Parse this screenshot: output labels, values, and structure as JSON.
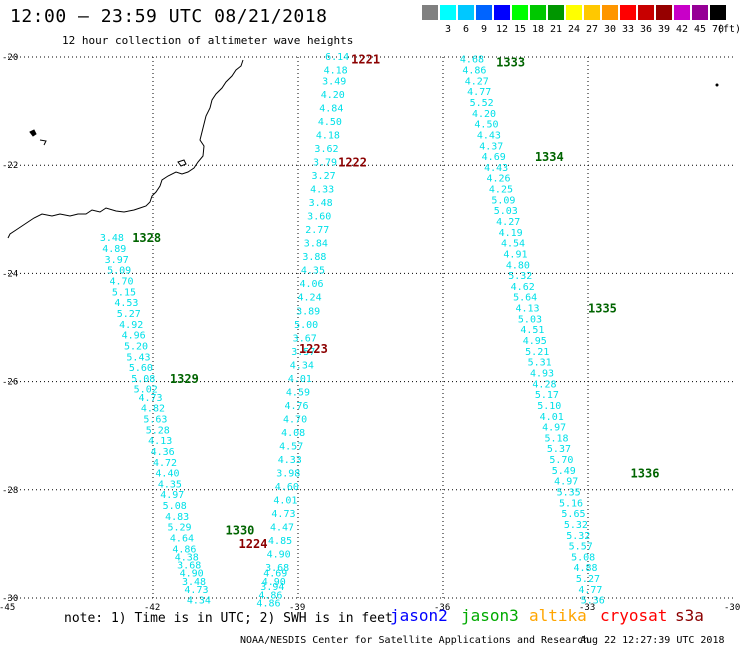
{
  "header": {
    "title": "12:00 – 23:59 UTC 08/21/2018",
    "subtitle": "12 hour collection of altimeter wave heights"
  },
  "legend": {
    "unit_label": "(ft)",
    "items": [
      {
        "label": "",
        "color": "#808080"
      },
      {
        "label": "3",
        "color": "#00ffff"
      },
      {
        "label": "6",
        "color": "#00c8ff"
      },
      {
        "label": "9",
        "color": "#0064ff"
      },
      {
        "label": "12",
        "color": "#0000ff"
      },
      {
        "label": "15",
        "color": "#00ff00"
      },
      {
        "label": "18",
        "color": "#00c800"
      },
      {
        "label": "21",
        "color": "#009600"
      },
      {
        "label": "24",
        "color": "#ffff00"
      },
      {
        "label": "27",
        "color": "#ffc800"
      },
      {
        "label": "30",
        "color": "#ff9600"
      },
      {
        "label": "33",
        "color": "#ff0000"
      },
      {
        "label": "36",
        "color": "#c80000"
      },
      {
        "label": "39",
        "color": "#960000"
      },
      {
        "label": "42",
        "color": "#c800c8"
      },
      {
        "label": "45",
        "color": "#960096"
      },
      {
        "label": "70",
        "color": "#000000"
      }
    ]
  },
  "map": {
    "lat_labels": [
      "-20",
      "-22",
      "-24",
      "-26",
      "-28",
      "-30"
    ],
    "lon_labels": [
      "-45",
      "-42",
      "-39",
      "-36",
      "-33",
      "-30"
    ],
    "tracks": [
      {
        "name": "1221-1224 track",
        "points": [
          [
            "6.14",
            -38.44,
            -20.0
          ],
          [
            "4.18",
            -38.47,
            -20.25
          ],
          [
            "3.49",
            -38.5,
            -20.45
          ],
          [
            "4.20",
            -38.53,
            -20.7
          ],
          [
            "4.84",
            -38.56,
            -20.95
          ],
          [
            "4.50",
            -38.59,
            -21.2
          ],
          [
            "4.18",
            -38.63,
            -21.45
          ],
          [
            "3.62",
            -38.66,
            -21.7
          ],
          [
            "3.79",
            -38.69,
            -21.95
          ],
          [
            "3.27",
            -38.72,
            -22.2
          ],
          [
            "4.33",
            -38.75,
            -22.45
          ],
          [
            "3.48",
            -38.78,
            -22.7
          ],
          [
            "3.60",
            -38.81,
            -22.95
          ],
          [
            "2.77",
            -38.85,
            -23.2
          ],
          [
            "3.84",
            -38.88,
            -23.45
          ],
          [
            "3.88",
            -38.91,
            -23.7
          ],
          [
            "4.35",
            -38.94,
            -23.95
          ],
          [
            "4.06",
            -38.97,
            -24.2
          ],
          [
            "4.24",
            -39.01,
            -24.45
          ],
          [
            "3.89",
            -39.04,
            -24.7
          ],
          [
            "5.00",
            -39.08,
            -24.95
          ],
          [
            "3.67",
            -39.11,
            -25.2
          ],
          [
            "3.57",
            -39.14,
            -25.45
          ],
          [
            "4.34",
            -39.17,
            -25.7
          ],
          [
            "4.01",
            -39.21,
            -25.95
          ],
          [
            "4.59",
            -39.25,
            -26.2
          ],
          [
            "4.76",
            -39.28,
            -26.45
          ],
          [
            "4.70",
            -39.31,
            -26.7
          ],
          [
            "4.08",
            -39.35,
            -26.95
          ],
          [
            "4.57",
            -39.39,
            -27.2
          ],
          [
            "4.33",
            -39.42,
            -27.45
          ],
          [
            "3.98",
            -39.45,
            -27.7
          ],
          [
            "4.60",
            -39.48,
            -27.95
          ],
          [
            "4.01",
            -39.51,
            -28.2
          ],
          [
            "4.73",
            -39.55,
            -28.45
          ],
          [
            "4.47",
            -39.58,
            -28.7
          ],
          [
            "4.85",
            -39.62,
            -28.95
          ],
          [
            "4.90",
            -39.65,
            -29.2
          ],
          [
            "3.68",
            -39.68,
            -29.45
          ],
          [
            "4.69",
            -39.72,
            -29.55
          ],
          [
            "4.90",
            -39.75,
            -29.7
          ],
          [
            "3.94",
            -39.78,
            -29.8
          ],
          [
            "4.86",
            -39.82,
            -29.95
          ],
          [
            "4.86",
            -39.86,
            -30.1
          ]
        ]
      },
      {
        "name": "1328-1330 track",
        "points": [
          [
            "3.48",
            -43.1,
            -23.35
          ],
          [
            "4.89",
            -43.05,
            -23.55
          ],
          [
            "3.97",
            -43.0,
            -23.75
          ],
          [
            "5.09",
            -42.95,
            -23.95
          ],
          [
            "4.70",
            -42.9,
            -24.15
          ],
          [
            "5.15",
            -42.85,
            -24.35
          ],
          [
            "4.53",
            -42.8,
            -24.55
          ],
          [
            "5.27",
            -42.75,
            -24.75
          ],
          [
            "4.92",
            -42.7,
            -24.95
          ],
          [
            "4.96",
            -42.65,
            -25.15
          ],
          [
            "5.20",
            -42.6,
            -25.35
          ],
          [
            "5.43",
            -42.55,
            -25.55
          ],
          [
            "5.60",
            -42.5,
            -25.75
          ],
          [
            "5.08",
            -42.45,
            -25.95
          ],
          [
            "5.02",
            -42.4,
            -26.15
          ],
          [
            "4.73",
            -42.3,
            -26.3
          ],
          [
            "4.82",
            -42.25,
            -26.5
          ],
          [
            "5.63",
            -42.2,
            -26.7
          ],
          [
            "5.28",
            -42.15,
            -26.9
          ],
          [
            "4.13",
            -42.1,
            -27.1
          ],
          [
            "4.36",
            -42.05,
            -27.3
          ],
          [
            "4.72",
            -42.0,
            -27.5
          ],
          [
            "4.40",
            -41.95,
            -27.7
          ],
          [
            "4.35",
            -41.9,
            -27.9
          ],
          [
            "4.97",
            -41.85,
            -28.1
          ],
          [
            "5.08",
            -41.8,
            -28.3
          ],
          [
            "4.83",
            -41.75,
            -28.5
          ],
          [
            "5.29",
            -41.7,
            -28.7
          ],
          [
            "4.64",
            -41.65,
            -28.9
          ],
          [
            "4.86",
            -41.6,
            -29.1
          ],
          [
            "4.38",
            -41.55,
            -29.25
          ],
          [
            "3.68",
            -41.5,
            -29.4
          ],
          [
            "4.90",
            -41.45,
            -29.55
          ],
          [
            "3.48",
            -41.4,
            -29.7
          ],
          [
            "4.73",
            -41.35,
            -29.85
          ],
          [
            "4.34",
            -41.3,
            -30.05
          ]
        ]
      },
      {
        "name": "1333-1336 track",
        "points": [
          [
            "4.68",
            -35.65,
            -20.05
          ],
          [
            "4.86",
            -35.6,
            -20.25
          ],
          [
            "4.27",
            -35.55,
            -20.45
          ],
          [
            "4.77",
            -35.5,
            -20.65
          ],
          [
            "5.52",
            -35.45,
            -20.85
          ],
          [
            "4.20",
            -35.4,
            -21.05
          ],
          [
            "4.50",
            -35.35,
            -21.25
          ],
          [
            "4.43",
            -35.3,
            -21.45
          ],
          [
            "4.37",
            -35.25,
            -21.65
          ],
          [
            "4.69",
            -35.2,
            -21.85
          ],
          [
            "4.43",
            -35.15,
            -22.05
          ],
          [
            "4.26",
            -35.1,
            -22.25
          ],
          [
            "4.25",
            -35.05,
            -22.45
          ],
          [
            "5.09",
            -35.0,
            -22.65
          ],
          [
            "5.03",
            -34.95,
            -22.85
          ],
          [
            "4.27",
            -34.9,
            -23.05
          ],
          [
            "4.19",
            -34.85,
            -23.25
          ],
          [
            "4.54",
            -34.8,
            -23.45
          ],
          [
            "4.91",
            -34.75,
            -23.65
          ],
          [
            "4.80",
            -34.7,
            -23.85
          ],
          [
            "5.32",
            -34.65,
            -24.05
          ],
          [
            "4.62",
            -34.6,
            -24.25
          ],
          [
            "5.64",
            -34.55,
            -24.45
          ],
          [
            "4.13",
            -34.5,
            -24.65
          ],
          [
            "5.03",
            -34.45,
            -24.85
          ],
          [
            "4.51",
            -34.4,
            -25.05
          ],
          [
            "4.95",
            -34.35,
            -25.25
          ],
          [
            "5.21",
            -34.3,
            -25.45
          ],
          [
            "5.31",
            -34.25,
            -25.65
          ],
          [
            "4.93",
            -34.2,
            -25.85
          ],
          [
            "4.28",
            -34.15,
            -26.05
          ],
          [
            "5.17",
            -34.1,
            -26.25
          ],
          [
            "5.10",
            -34.05,
            -26.45
          ],
          [
            "4.01",
            -34.0,
            -26.65
          ],
          [
            "4.97",
            -33.95,
            -26.85
          ],
          [
            "5.18",
            -33.9,
            -27.05
          ],
          [
            "5.37",
            -33.85,
            -27.25
          ],
          [
            "5.70",
            -33.8,
            -27.45
          ],
          [
            "5.49",
            -33.75,
            -27.65
          ],
          [
            "4.97",
            -33.7,
            -27.85
          ],
          [
            "5.35",
            -33.65,
            -28.05
          ],
          [
            "5.16",
            -33.6,
            -28.25
          ],
          [
            "5.65",
            -33.55,
            -28.45
          ],
          [
            "5.32",
            -33.5,
            -28.65
          ],
          [
            "5.32",
            -33.45,
            -28.85
          ],
          [
            "5.57",
            -33.4,
            -29.05
          ],
          [
            "5.08",
            -33.35,
            -29.25
          ],
          [
            "4.88",
            -33.3,
            -29.45
          ],
          [
            "5.27",
            -33.25,
            -29.65
          ],
          [
            "4.77",
            -33.2,
            -29.85
          ],
          [
            "5.36",
            -33.15,
            -30.05
          ]
        ]
      }
    ],
    "pass_labels": [
      {
        "text": "1221",
        "color": "#8b0000",
        "lon": -37.9,
        "lat": -20.05
      },
      {
        "text": "1222",
        "color": "#8b0000",
        "lon": -38.17,
        "lat": -21.95
      },
      {
        "text": "1223",
        "color": "#8b0000",
        "lon": -38.98,
        "lat": -25.4
      },
      {
        "text": "1224",
        "color": "#8b0000",
        "lon": -40.23,
        "lat": -29.0
      },
      {
        "text": "1328",
        "color": "#006400",
        "lon": -42.43,
        "lat": -23.35
      },
      {
        "text": "1329",
        "color": "#006400",
        "lon": -41.65,
        "lat": -25.95
      },
      {
        "text": "1330",
        "color": "#006400",
        "lon": -40.5,
        "lat": -28.75
      },
      {
        "text": "1333",
        "color": "#006400",
        "lon": -34.9,
        "lat": -20.1
      },
      {
        "text": "1334",
        "color": "#006400",
        "lon": -34.1,
        "lat": -21.85
      },
      {
        "text": "1335",
        "color": "#006400",
        "lon": -33.0,
        "lat": -24.65
      },
      {
        "text": "1336",
        "color": "#006400",
        "lon": -32.12,
        "lat": -27.7
      }
    ]
  },
  "footer": {
    "note": "note:  1) Time is in UTC;  2) SWH is in feet",
    "missions": [
      {
        "name": "jason2",
        "color": "#0000ff"
      },
      {
        "name": "jason3",
        "color": "#00aa00"
      },
      {
        "name": "altika",
        "color": "#ffa500"
      },
      {
        "name": "cryosat",
        "color": "#ff0000"
      },
      {
        "name": "s3a",
        "color": "#8b0000"
      }
    ],
    "credit": "NOAA/NESDIS Center for Satellite Applications and Research",
    "timestamp": "Aug 22 12:27:39 UTC 2018"
  }
}
